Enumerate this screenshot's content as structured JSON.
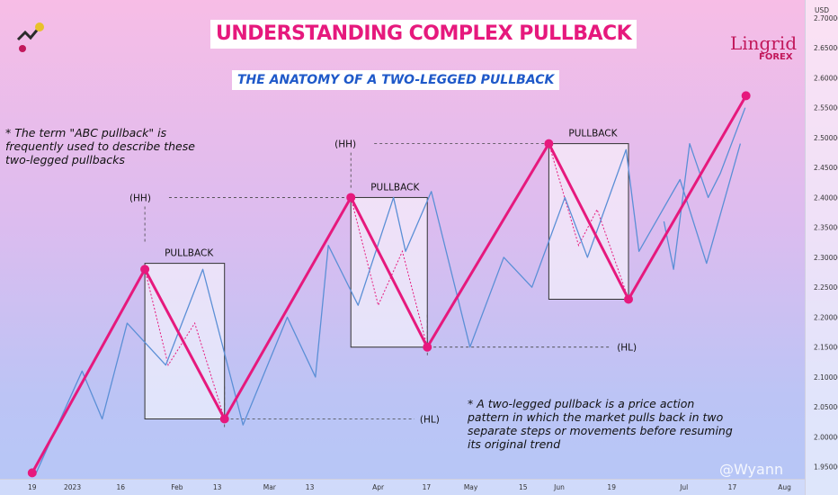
{
  "chart_data": {
    "type": "line",
    "title": "UNDERSTANDING COMPLEX PULLBACK",
    "subtitle": "THE ANATOMY OF A TWO-LEGGED PULLBACK",
    "currency": "USD",
    "x_tick_labels": [
      "19",
      "2023",
      "16",
      "Feb",
      "13",
      "Mar",
      "13",
      "Apr",
      "17",
      "May",
      "15",
      "Jun",
      "19",
      "Jul",
      "17",
      "Aug"
    ],
    "y_tick_labels": [
      "1.95000",
      "2.00000",
      "2.05000",
      "2.10000",
      "2.15000",
      "2.20000",
      "2.25000",
      "2.30000",
      "2.35000",
      "2.40000",
      "2.45000",
      "2.50000",
      "2.55000",
      "2.60000",
      "2.65000",
      "2.70000"
    ],
    "ylim": [
      1.93,
      2.73
    ],
    "xlim": [
      0,
      100
    ],
    "series": [
      {
        "color": "#5b8fd6",
        "x": [
          4.5,
          10.2,
          12.7,
          15.8,
          20.6,
          25.2,
          30.2,
          35.7,
          39.2,
          40.8,
          44.5,
          48.9,
          50.4,
          53.6,
          58.4,
          62.6,
          66.1,
          70.2,
          73.0,
          77.8,
          79.4,
          84.5,
          87.8,
          92.0
        ],
        "y": [
          1.94,
          2.11,
          2.03,
          2.19,
          2.12,
          2.28,
          2.02,
          2.2,
          2.1,
          2.32,
          2.22,
          2.4,
          2.31,
          2.41,
          2.15,
          2.3,
          2.25,
          2.4,
          2.3,
          2.48,
          2.31,
          2.43,
          2.29,
          2.49
        ]
      },
      {
        "color": "#5b8fd6",
        "x": [
          82.5,
          83.7,
          85.7,
          88.0,
          89.5,
          92.6
        ],
        "y": [
          2.36,
          2.28,
          2.49,
          2.4,
          2.44,
          2.55
        ]
      },
      {
        "color": "#e6197d",
        "x": [
          4.0,
          18.0,
          27.9,
          43.6,
          53.1,
          68.2,
          78.1,
          92.7
        ],
        "y": [
          1.94,
          2.28,
          2.03,
          2.4,
          2.15,
          2.49,
          2.23,
          2.57
        ]
      }
    ],
    "pullback_dotted": [
      {
        "x": [
          18.0,
          20.9,
          24.2,
          27.9
        ],
        "y": [
          2.28,
          2.12,
          2.19,
          2.03
        ]
      },
      {
        "x": [
          43.6,
          47.0,
          50.0,
          53.1
        ],
        "y": [
          2.4,
          2.22,
          2.31,
          2.15
        ]
      },
      {
        "x": [
          68.2,
          71.9,
          74.2,
          78.1
        ],
        "y": [
          2.49,
          2.32,
          2.38,
          2.23
        ]
      }
    ],
    "pullback_boxes": [
      {
        "label": "PULLBACK",
        "x0": 18.0,
        "x1": 27.9,
        "y0": 2.03,
        "y1": 2.29
      },
      {
        "label": "PULLBACK",
        "x0": 43.6,
        "x1": 53.1,
        "y0": 2.15,
        "y1": 2.4
      },
      {
        "label": "PULLBACK",
        "x0": 68.2,
        "x1": 78.1,
        "y0": 2.23,
        "y1": 2.49
      }
    ],
    "level_labels": [
      {
        "text": "(HH)",
        "x": 18.0,
        "y": 2.4,
        "line_from": 21.0,
        "line_to": 44.0,
        "anchor_x": 18.0
      },
      {
        "text": "(HL)",
        "x": 53.4,
        "y": 2.03,
        "line_from": 28.0,
        "line_to": 51.5,
        "anchor_x": 27.9
      },
      {
        "text": "(HH)",
        "x": 43.6,
        "y": 2.49,
        "line_from": 46.5,
        "line_to": 68.2,
        "anchor_x": 43.6
      },
      {
        "text": "(HL)",
        "x": 78.1,
        "y": 2.15,
        "line_from": 53.2,
        "line_to": 76.0,
        "anchor_x": 53.1
      }
    ]
  },
  "notes": {
    "note1": "* The term \"ABC pullback\" is frequently used to describe these two-legged pullbacks",
    "note2": "* A two-legged pullback is a price action pattern in which the market pulls back in two separate steps or movements before resuming its original trend"
  },
  "brand": {
    "name": "Lingrid",
    "sub": "FOREX"
  },
  "watermark": "@Wyann"
}
